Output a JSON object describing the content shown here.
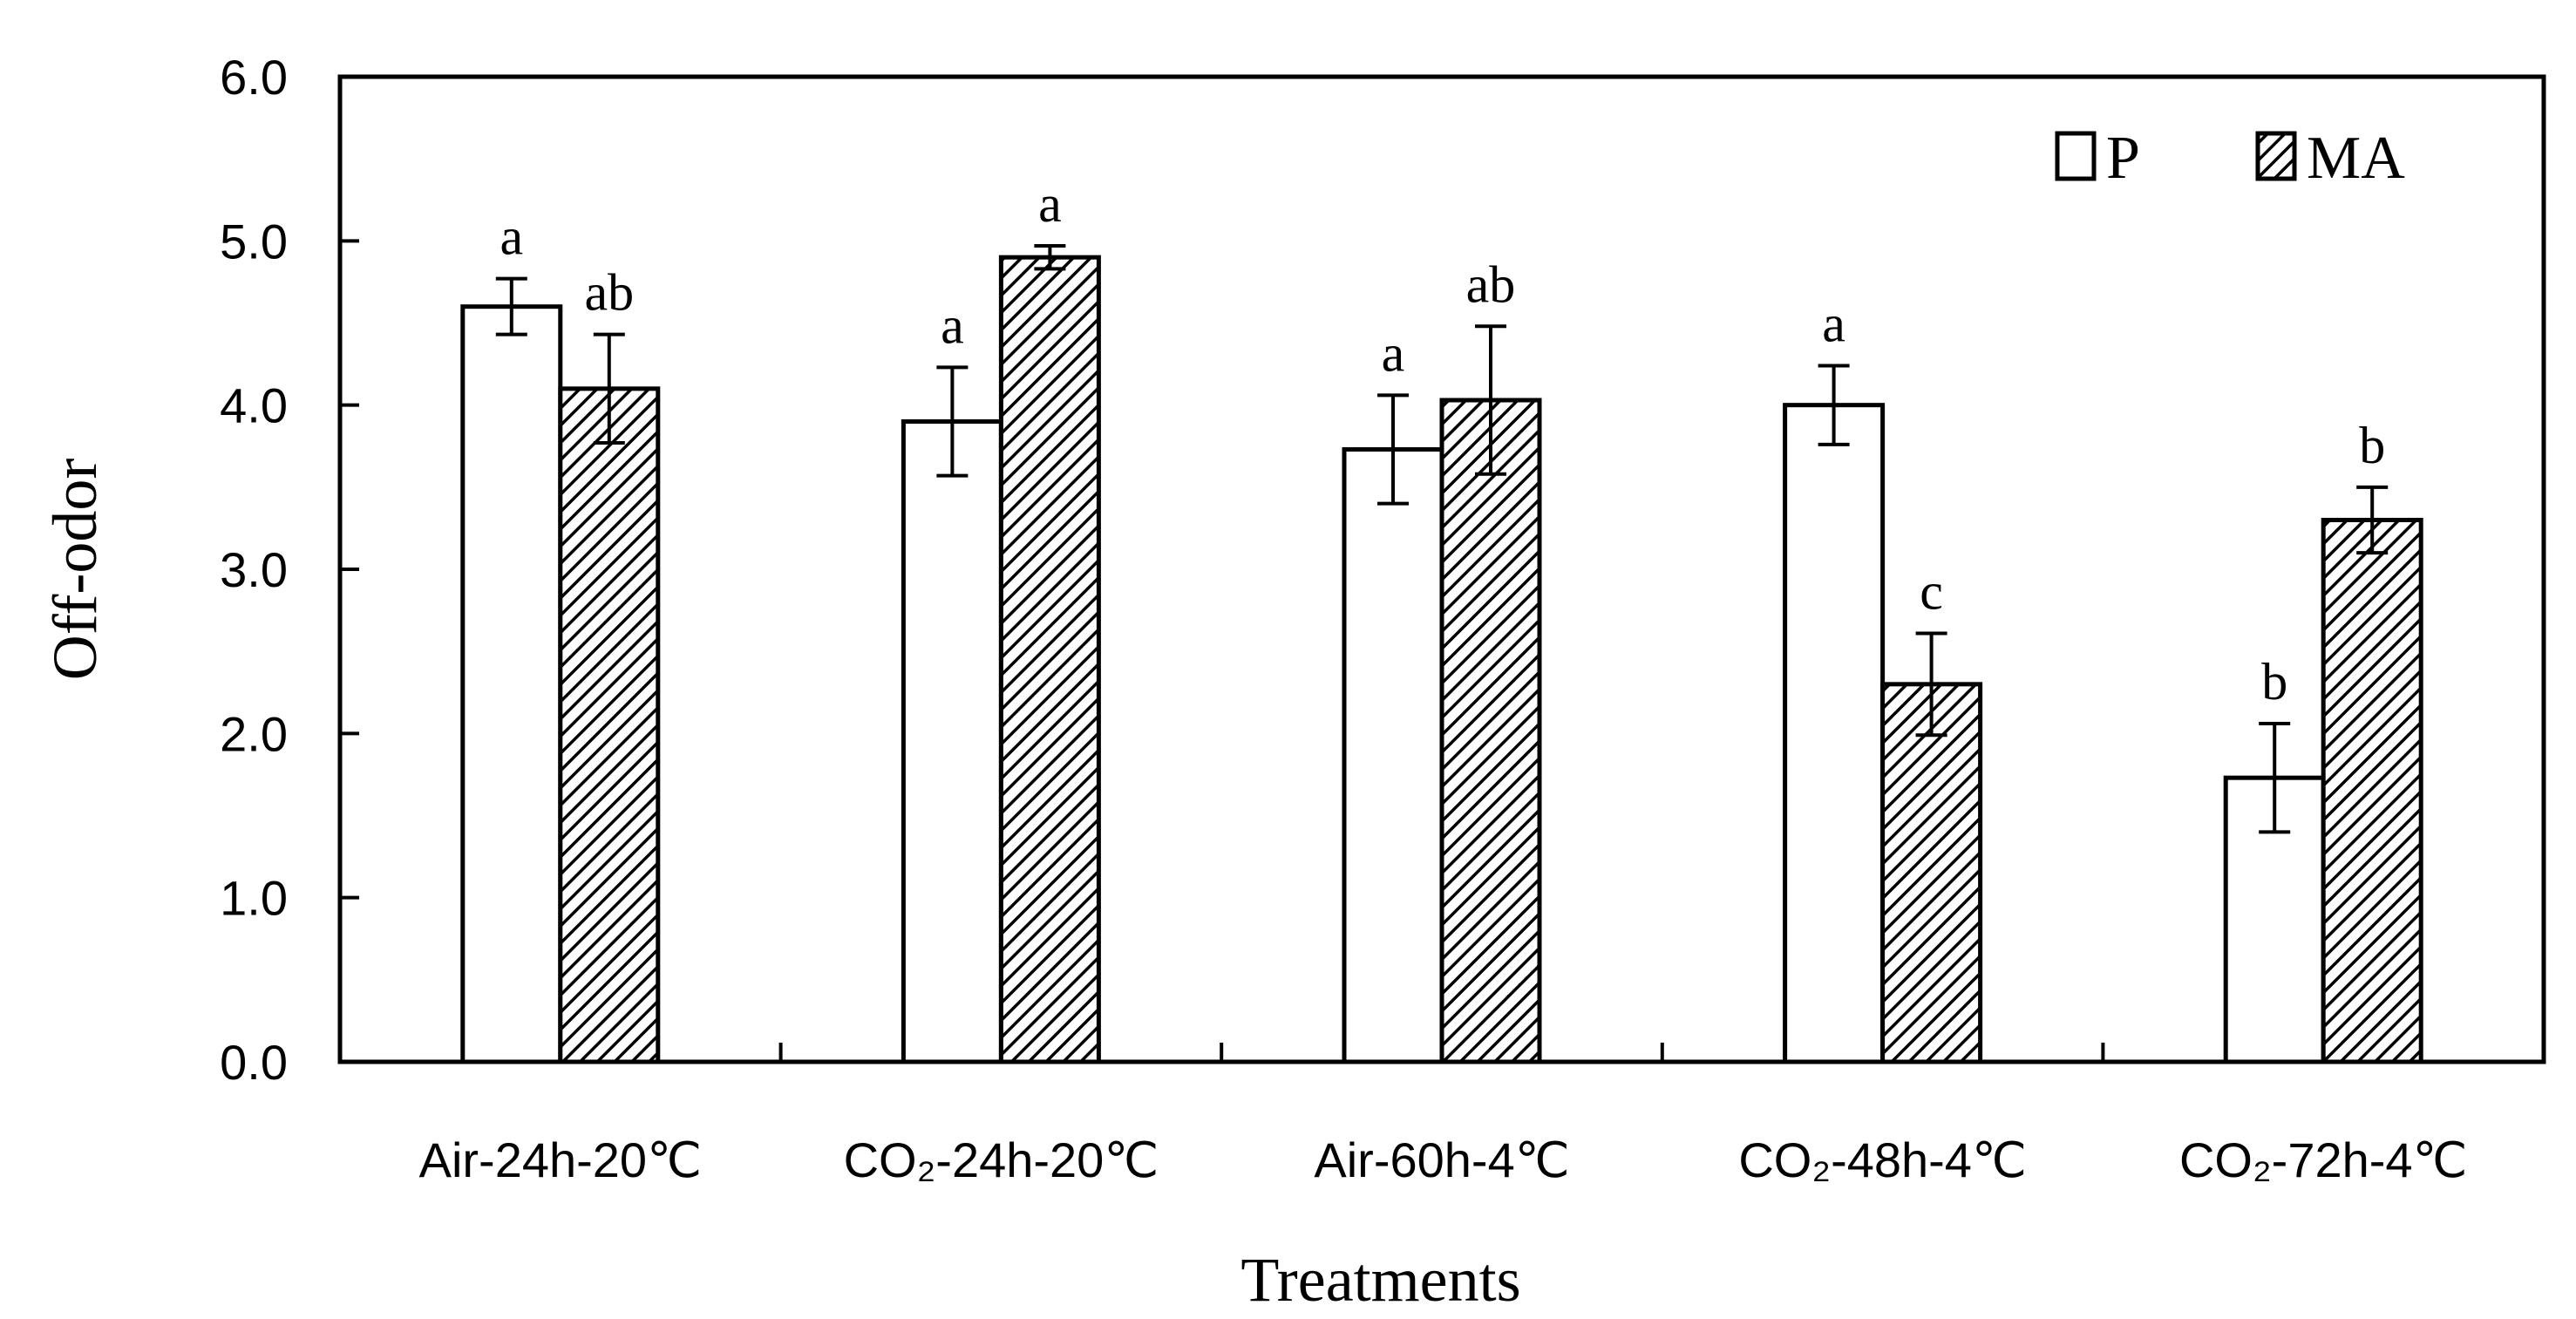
{
  "chart_data": {
    "type": "bar",
    "title": "",
    "xlabel": "Treatments",
    "ylabel": "Off-odor",
    "ylim": [
      0,
      6
    ],
    "yticks": [
      "0.0",
      "1.0",
      "2.0",
      "3.0",
      "4.0",
      "5.0",
      "6.0"
    ],
    "grid": false,
    "legend_position": "top-right",
    "categories": [
      "Air-24h-20℃",
      "CO₂-24h-20℃",
      "Air-60h-4℃",
      "CO₂-48h-4℃",
      "CO₂-72h-4℃"
    ],
    "series": [
      {
        "name": "P",
        "fill": "#ffffff",
        "pattern": "none",
        "values": [
          4.6,
          3.9,
          3.73,
          4.0,
          1.73
        ],
        "errors": [
          0.17,
          0.33,
          0.33,
          0.24,
          0.33
        ],
        "letters": [
          "a",
          "a",
          "a",
          "a",
          "b"
        ]
      },
      {
        "name": "MA",
        "fill": "#ffffff",
        "pattern": "diagonal-hatch",
        "values": [
          4.1,
          4.9,
          4.03,
          2.3,
          3.3
        ],
        "errors": [
          0.33,
          0.07,
          0.45,
          0.31,
          0.2
        ],
        "letters": [
          "ab",
          "a",
          "ab",
          "c",
          "b"
        ]
      }
    ]
  }
}
